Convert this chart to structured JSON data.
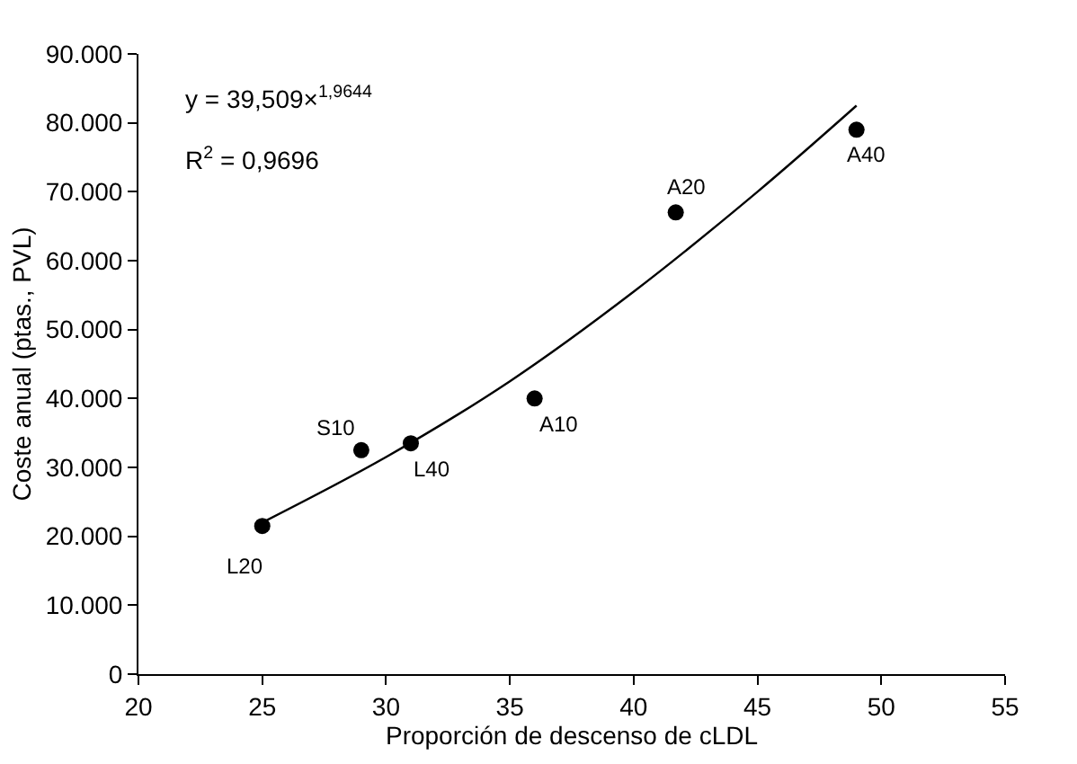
{
  "chart_data": {
    "type": "scatter",
    "xlabel": "Proporción de descenso de cLDL",
    "ylabel": "Coste anual (ptas., PVL)",
    "xlim": [
      20,
      55
    ],
    "xticks": [
      20,
      25,
      30,
      35,
      40,
      45,
      50,
      55
    ],
    "ylim": [
      0,
      90000
    ],
    "yticks": [
      {
        "value": 0,
        "label": "0"
      },
      {
        "value": 10000,
        "label": "10.000"
      },
      {
        "value": 20000,
        "label": "20.000"
      },
      {
        "value": 30000,
        "label": "30.000"
      },
      {
        "value": 40000,
        "label": "40.000"
      },
      {
        "value": 50000,
        "label": "50.000"
      },
      {
        "value": 60000,
        "label": "60.000"
      },
      {
        "value": 70000,
        "label": "70.000"
      },
      {
        "value": 80000,
        "label": "80.000"
      },
      {
        "value": 90000,
        "label": "90.000"
      }
    ],
    "legend": false,
    "marker": "circle",
    "series": [
      {
        "color": "#000000",
        "x": [
          25,
          29,
          31,
          36,
          41.7,
          49
        ],
        "values": [
          21500,
          32500,
          33500,
          40000,
          67000,
          79000
        ]
      },
      {
        "type": "line",
        "color": "#000000",
        "marker": "none",
        "line_style": "solid",
        "x": [
          25,
          30,
          35,
          40,
          45,
          49
        ],
        "values": [
          22000,
          31500,
          42500,
          55500,
          70000,
          82500
        ]
      }
    ],
    "annotations": [
      "y = 39,509×$^{1,9644}$",
      "R$^{2}$ = 0,9696",
      {
        "text": "L20",
        "x": 25,
        "y": 21500
      },
      {
        "text": "S10",
        "x": 29,
        "y": 32500
      },
      {
        "text": "L40",
        "x": 31,
        "y": 33500
      },
      {
        "text": "A10",
        "x": 36,
        "y": 40000
      },
      {
        "text": "A20",
        "x": 41.7,
        "y": 67000
      },
      {
        "text": "A40",
        "x": 49,
        "y": 79000
      }
    ]
  }
}
